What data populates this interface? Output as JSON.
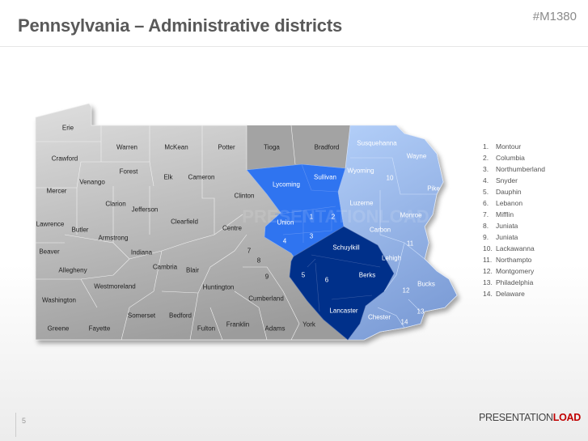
{
  "header": {
    "title": "Pennsylvania – Administrative districts",
    "code": "#M1380"
  },
  "colors": {
    "dark_blue": "#002f87",
    "medium_blue": "#2f74f0",
    "light_blue": "#a9c6f5",
    "gray": "#b5b5b5",
    "brand_red": "#c00000"
  },
  "counties": [
    "Erie",
    "Warren",
    "McKean",
    "Potter",
    "Tioga",
    "Bradford",
    "Susquehanna",
    "Wayne",
    "Crawford",
    "Forest",
    "Elk",
    "Cameron",
    "Wyoming",
    "10",
    "Pike",
    "Venango",
    "Lycoming",
    "Sullivan",
    "Mercer",
    "Clinton",
    "Clarion",
    "Jefferson",
    "Luzerne",
    "Monroe",
    "1",
    "2",
    "Union",
    "Clearfield",
    "Centre",
    "Lawrence",
    "Butler",
    "Carbon",
    "Armstrong",
    "3",
    "4",
    "11",
    "Beaver",
    "Indiana",
    "7",
    "Schuylkill",
    "Lehigh",
    "8",
    "Cambria",
    "Blair",
    "Allegheny",
    "5",
    "9",
    "6",
    "Berks",
    "Bucks",
    "12",
    "Westmoreland",
    "Huntington",
    "Cumberland",
    "Washington",
    "Lancaster",
    "13",
    "Chester",
    "Somerset",
    "Bedford",
    "14",
    "Franklin",
    "York",
    "Greene",
    "Fayette",
    "Fulton",
    "Adams"
  ],
  "legend": [
    {
      "n": "1.",
      "name": "Montour"
    },
    {
      "n": "2.",
      "name": "Columbia"
    },
    {
      "n": "3.",
      "name": "Northumberland"
    },
    {
      "n": "4.",
      "name": "Snyder"
    },
    {
      "n": "5.",
      "name": "Dauphin"
    },
    {
      "n": "6.",
      "name": "Lebanon"
    },
    {
      "n": "7.",
      "name": "Mifflin"
    },
    {
      "n": "8.",
      "name": "Juniata"
    },
    {
      "n": "9.",
      "name": "Juniata"
    },
    {
      "n": "10.",
      "name": "Lackawanna"
    },
    {
      "n": "11.",
      "name": "Northampto"
    },
    {
      "n": "12.",
      "name": "Montgomery"
    },
    {
      "n": "13.",
      "name": "Philadelphia"
    },
    {
      "n": "14.",
      "name": "Delaware"
    }
  ],
  "footer": {
    "page": "5",
    "logo_a": "PRESENTATION",
    "logo_b": "LOAD"
  }
}
